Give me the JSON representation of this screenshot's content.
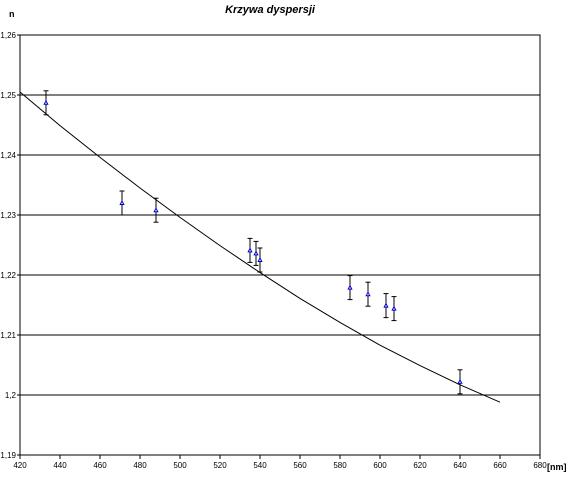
{
  "chart_data": {
    "type": "scatter",
    "title": "Krzywa dyspersji",
    "xlabel": "[nm]",
    "ylabel": "n",
    "xlim": [
      420,
      680
    ],
    "ylim": [
      1.19,
      1.26
    ],
    "x_ticks": [
      "420",
      "440",
      "460",
      "480",
      "500",
      "520",
      "540",
      "560",
      "580",
      "600",
      "620",
      "640",
      "660",
      "680"
    ],
    "y_ticks": [
      "1,19",
      "1,2",
      "1,21",
      "1,22",
      "1,23",
      "1,24",
      "1,25",
      "1,26"
    ],
    "grid": "horizontal",
    "legend": "none",
    "series": [
      {
        "kind": "points_with_error_bars",
        "color": "#0000cc",
        "error": 0.002,
        "points": [
          {
            "x": 433,
            "y": 1.2487
          },
          {
            "x": 471,
            "y": 1.232
          },
          {
            "x": 488,
            "y": 1.2308
          },
          {
            "x": 535,
            "y": 1.2241
          },
          {
            "x": 538,
            "y": 1.2236
          },
          {
            "x": 540,
            "y": 1.2225
          },
          {
            "x": 585,
            "y": 1.2179
          },
          {
            "x": 594,
            "y": 1.2168
          },
          {
            "x": 603,
            "y": 1.2149
          },
          {
            "x": 607,
            "y": 1.2144
          },
          {
            "x": 640,
            "y": 1.2022
          }
        ]
      },
      {
        "kind": "fit_line",
        "color": "#000000",
        "x": [
          420,
          440,
          460,
          480,
          500,
          520,
          540,
          560,
          580,
          600,
          620,
          640,
          660
        ],
        "y": [
          1.2505,
          1.2449,
          1.2396,
          1.2345,
          1.2296,
          1.2249,
          1.2204,
          1.2161,
          1.2121,
          1.2083,
          1.2049,
          1.2017,
          1.1988
        ]
      }
    ]
  }
}
